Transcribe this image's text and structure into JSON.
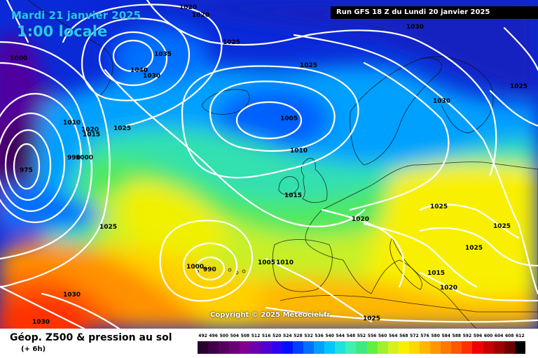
{
  "header": {
    "date": "Mardi 21 janvier 2025",
    "time": "1:00 locale",
    "run": "Run GFS 18 Z du Lundi 20 janvier 2025"
  },
  "copyright": "Copyright © 2025 Meteociel.fr",
  "legend": {
    "title": "Géop. Z500 & pression au sol",
    "subtitle": "(+ 6h)",
    "scale": [
      {
        "label": "492",
        "color": "#2a0030"
      },
      {
        "label": "496",
        "color": "#400048"
      },
      {
        "label": "500",
        "color": "#560060"
      },
      {
        "label": "504",
        "color": "#6c0078"
      },
      {
        "label": "508",
        "color": "#800090"
      },
      {
        "label": "512",
        "color": "#6a00b0"
      },
      {
        "label": "516",
        "color": "#4e00d0"
      },
      {
        "label": "520",
        "color": "#3200f0"
      },
      {
        "label": "524",
        "color": "#0010ff"
      },
      {
        "label": "528",
        "color": "#0040ff"
      },
      {
        "label": "532",
        "color": "#0070ff"
      },
      {
        "label": "536",
        "color": "#00a0ff"
      },
      {
        "label": "540",
        "color": "#00c8ff"
      },
      {
        "label": "544",
        "color": "#20e0e0"
      },
      {
        "label": "548",
        "color": "#40f0b0"
      },
      {
        "label": "552",
        "color": "#40e880"
      },
      {
        "label": "556",
        "color": "#60f040"
      },
      {
        "label": "560",
        "color": "#a0f030"
      },
      {
        "label": "564",
        "color": "#d8f020"
      },
      {
        "label": "568",
        "color": "#f8f000"
      },
      {
        "label": "572",
        "color": "#ffd800"
      },
      {
        "label": "576",
        "color": "#ffb800"
      },
      {
        "label": "580",
        "color": "#ff9800"
      },
      {
        "label": "584",
        "color": "#ff7800"
      },
      {
        "label": "588",
        "color": "#ff5800"
      },
      {
        "label": "592",
        "color": "#ff3000"
      },
      {
        "label": "596",
        "color": "#f00000"
      },
      {
        "label": "600",
        "color": "#c80000"
      },
      {
        "label": "604",
        "color": "#a00000"
      },
      {
        "label": "608",
        "color": "#700000"
      },
      {
        "label": "612",
        "color": "#000000"
      }
    ]
  },
  "isobar_labels": [
    {
      "text": "1020"
    },
    {
      "text": "1020"
    },
    {
      "text": "1000"
    },
    {
      "text": "1025"
    },
    {
      "text": "1035"
    },
    {
      "text": "1040"
    },
    {
      "text": "1030"
    },
    {
      "text": "1030"
    },
    {
      "text": "1025"
    },
    {
      "text": "1025"
    },
    {
      "text": "1005"
    },
    {
      "text": "1030"
    },
    {
      "text": "1010"
    },
    {
      "text": "1020"
    },
    {
      "text": "1015"
    },
    {
      "text": "1025"
    },
    {
      "text": "1010"
    },
    {
      "text": "1015"
    },
    {
      "text": "1000"
    },
    {
      "text": "990"
    },
    {
      "text": "975"
    },
    {
      "text": "1025"
    },
    {
      "text": "1020"
    },
    {
      "text": "1025"
    },
    {
      "text": "1025"
    },
    {
      "text": "1025"
    },
    {
      "text": "1000"
    },
    {
      "text": "990"
    },
    {
      "text": "1005"
    },
    {
      "text": "1010"
    },
    {
      "text": "1015"
    },
    {
      "text": "1030"
    },
    {
      "text": "1030"
    },
    {
      "text": "1020"
    },
    {
      "text": "1025"
    }
  ]
}
